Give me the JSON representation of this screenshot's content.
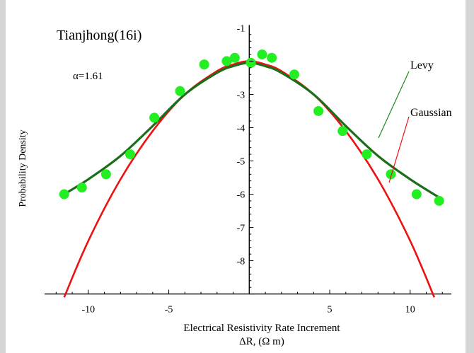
{
  "chart_data": {
    "type": "scatter",
    "title": "Tianjhong(16i)",
    "annotation": "α=1.61",
    "xlabel": "Electrical Resistivity Rate Increment",
    "xlabel2": "ΔR,  (Ω m)",
    "ylabel": "Probability  Density",
    "xlim": [
      -12.5,
      13
    ],
    "ylim": [
      -9.2,
      -0.8
    ],
    "xticks": [
      -10,
      -5,
      5,
      10
    ],
    "xtick_labels": [
      "-10",
      "-5",
      "5",
      "10"
    ],
    "yticks": [
      -1,
      -3,
      -4,
      -5,
      -6,
      -7,
      -8
    ],
    "ytick_labels": [
      "-1",
      "-3",
      "-4",
      "-5",
      "-6",
      "-7",
      "-8"
    ],
    "grid": false,
    "colors": {
      "points": "#22ee22",
      "levy": "#1a6e1a",
      "gaussian": "#ee1111",
      "frame": "#d6d6d6"
    },
    "series": [
      {
        "name": "",
        "kind": "points",
        "x": [
          -11.5,
          -10.4,
          -8.9,
          -7.4,
          -5.9,
          -4.3,
          -2.8,
          -1.4,
          -0.9,
          0.1,
          0.8,
          1.4,
          2.8,
          4.3,
          5.8,
          7.3,
          8.8,
          10.4,
          11.8
        ],
        "y": [
          -6.0,
          -5.8,
          -5.4,
          -4.8,
          -3.7,
          -2.9,
          -2.1,
          -2.0,
          -1.9,
          -2.05,
          -1.8,
          -1.9,
          -2.4,
          -3.5,
          -4.1,
          -4.8,
          -5.4,
          -6.0,
          -6.2
        ]
      },
      {
        "name": "Levy",
        "kind": "line",
        "x": [
          -11.5,
          -10,
          -8,
          -6,
          -4,
          -2,
          -1,
          0,
          1,
          2,
          4,
          6,
          8,
          10,
          11.8
        ],
        "y": [
          -6.0,
          -5.55,
          -4.85,
          -3.95,
          -3.0,
          -2.35,
          -2.15,
          -2.05,
          -2.15,
          -2.35,
          -3.0,
          -3.95,
          -4.85,
          -5.55,
          -6.1
        ]
      },
      {
        "name": "Gaussian",
        "kind": "line",
        "x": [
          -11.5,
          -10,
          -8,
          -6,
          -4,
          -2,
          -1,
          0,
          1,
          2,
          4,
          6,
          8,
          10,
          11.5
        ],
        "y": [
          -9.1,
          -7.4,
          -5.55,
          -4.1,
          -3.0,
          -2.3,
          -2.1,
          -2.0,
          -2.1,
          -2.3,
          -3.0,
          -4.1,
          -5.55,
          -7.4,
          -9.1
        ]
      }
    ],
    "labels": {
      "levy": "Levy",
      "gaussian": "Gaussian"
    }
  }
}
